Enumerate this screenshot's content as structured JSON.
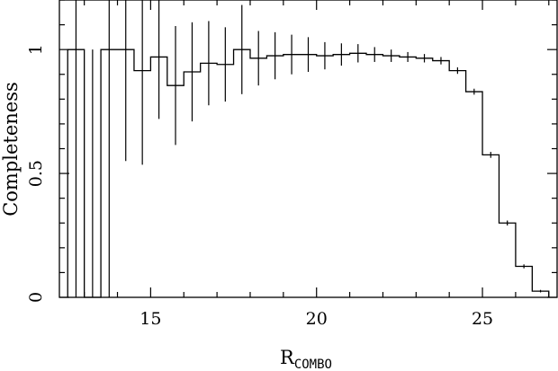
{
  "chart_data": {
    "type": "step",
    "xlabel": "R",
    "xlabel_subscript": "COMBO",
    "ylabel": "Completeness",
    "xlim": [
      12.25,
      27.25
    ],
    "ylim": [
      0,
      1.2
    ],
    "xticks": [
      15,
      20,
      25
    ],
    "xtick_labels": [
      "15",
      "20",
      "25"
    ],
    "yticks": [
      0,
      0.5,
      1
    ],
    "ytick_labels": [
      "0",
      "0.5",
      "1"
    ],
    "grid": false,
    "bins": [
      {
        "x0": 12.5,
        "x1": 13.0,
        "y": 1.0,
        "err": 1.0
      },
      {
        "x0": 13.0,
        "x1": 13.5,
        "y": 0.0,
        "err": 1.0
      },
      {
        "x0": 13.5,
        "x1": 14.0,
        "y": 1.0,
        "err": 1.0
      },
      {
        "x0": 14.0,
        "x1": 14.5,
        "y": 1.0,
        "err": 0.45
      },
      {
        "x0": 14.5,
        "x1": 15.0,
        "y": 0.915,
        "err": 0.38
      },
      {
        "x0": 15.0,
        "x1": 15.5,
        "y": 0.97,
        "err": 0.25
      },
      {
        "x0": 15.5,
        "x1": 16.0,
        "y": 0.855,
        "err": 0.24
      },
      {
        "x0": 16.0,
        "x1": 16.5,
        "y": 0.91,
        "err": 0.2
      },
      {
        "x0": 16.5,
        "x1": 17.0,
        "y": 0.945,
        "err": 0.17
      },
      {
        "x0": 17.0,
        "x1": 17.5,
        "y": 0.94,
        "err": 0.15
      },
      {
        "x0": 17.5,
        "x1": 18.0,
        "y": 1.0,
        "err": 0.18
      },
      {
        "x0": 18.0,
        "x1": 18.5,
        "y": 0.965,
        "err": 0.11
      },
      {
        "x0": 18.5,
        "x1": 19.0,
        "y": 0.975,
        "err": 0.095
      },
      {
        "x0": 19.0,
        "x1": 19.5,
        "y": 0.98,
        "err": 0.08
      },
      {
        "x0": 19.5,
        "x1": 20.0,
        "y": 0.98,
        "err": 0.07
      },
      {
        "x0": 20.0,
        "x1": 20.5,
        "y": 0.975,
        "err": 0.055
      },
      {
        "x0": 20.5,
        "x1": 21.0,
        "y": 0.98,
        "err": 0.045
      },
      {
        "x0": 21.0,
        "x1": 21.5,
        "y": 0.985,
        "err": 0.037
      },
      {
        "x0": 21.5,
        "x1": 22.0,
        "y": 0.98,
        "err": 0.03
      },
      {
        "x0": 22.0,
        "x1": 22.5,
        "y": 0.975,
        "err": 0.025
      },
      {
        "x0": 22.5,
        "x1": 23.0,
        "y": 0.97,
        "err": 0.02
      },
      {
        "x0": 23.0,
        "x1": 23.5,
        "y": 0.965,
        "err": 0.017
      },
      {
        "x0": 23.5,
        "x1": 24.0,
        "y": 0.955,
        "err": 0.015
      },
      {
        "x0": 24.0,
        "x1": 24.5,
        "y": 0.915,
        "err": 0.013
      },
      {
        "x0": 24.5,
        "x1": 25.0,
        "y": 0.83,
        "err": 0.012
      },
      {
        "x0": 25.0,
        "x1": 25.5,
        "y": 0.575,
        "err": 0.012
      },
      {
        "x0": 25.5,
        "x1": 26.0,
        "y": 0.3,
        "err": 0.01
      },
      {
        "x0": 26.0,
        "x1": 26.5,
        "y": 0.125,
        "err": 0.008
      },
      {
        "x0": 26.5,
        "x1": 27.0,
        "y": 0.025,
        "err": 0.005
      }
    ]
  }
}
